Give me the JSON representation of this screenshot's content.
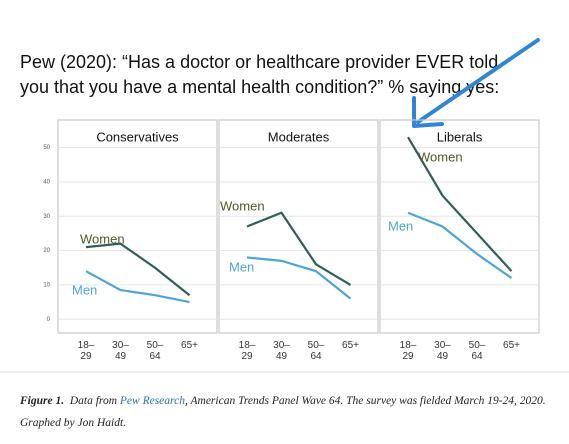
{
  "title": [
    "Pew (2020): “Has a doctor or healthcare provider EVER told",
    "you that you have a mental health condition?” % saying yes:"
  ],
  "chart_data": [
    {
      "type": "line",
      "title": "Conservatives",
      "categories": [
        "18–29",
        "30–49",
        "50–64",
        "65+"
      ],
      "series": [
        {
          "name": "Women",
          "color": "#2f5f5b",
          "label_color": "#4b5a27",
          "values": [
            21,
            22,
            15,
            7
          ]
        },
        {
          "name": "Men",
          "color": "#4ea3d9",
          "label_color": "#4ea3d9",
          "values": [
            14,
            8.5,
            7,
            5
          ]
        }
      ],
      "ylim": [
        -4,
        58
      ],
      "yticks": [
        0,
        10,
        20,
        30,
        40,
        50
      ],
      "grid": true
    },
    {
      "type": "line",
      "title": "Moderates",
      "categories": [
        "18–29",
        "30–49",
        "50–64",
        "65+"
      ],
      "series": [
        {
          "name": "Women",
          "color": "#2f5f5b",
          "label_color": "#4b5a27",
          "values": [
            27,
            31,
            16,
            10
          ]
        },
        {
          "name": "Men",
          "color": "#4ea3d9",
          "label_color": "#4ea3d9",
          "values": [
            18,
            17,
            14,
            6
          ]
        }
      ],
      "ylim": [
        -4,
        58
      ],
      "grid": true
    },
    {
      "type": "line",
      "title": "Liberals",
      "categories": [
        "18–29",
        "30–49",
        "50–64",
        "65+"
      ],
      "series": [
        {
          "name": "Women",
          "color": "#2f5f5b",
          "label_color": "#4b5a27",
          "values": [
            53,
            36,
            25,
            14
          ]
        },
        {
          "name": "Men",
          "color": "#4ea3d9",
          "label_color": "#4ea3d9",
          "values": [
            31,
            27,
            19,
            12
          ]
        }
      ],
      "ylim": [
        -4,
        58
      ],
      "grid": true
    }
  ],
  "caption": {
    "label": "Figure 1.",
    "before": "Data from",
    "link": "Pew Research",
    "after": ", American Trends Panel Wave 64. The survey was fielded March 19-24, 2020. Graphed by Jon Haidt."
  }
}
